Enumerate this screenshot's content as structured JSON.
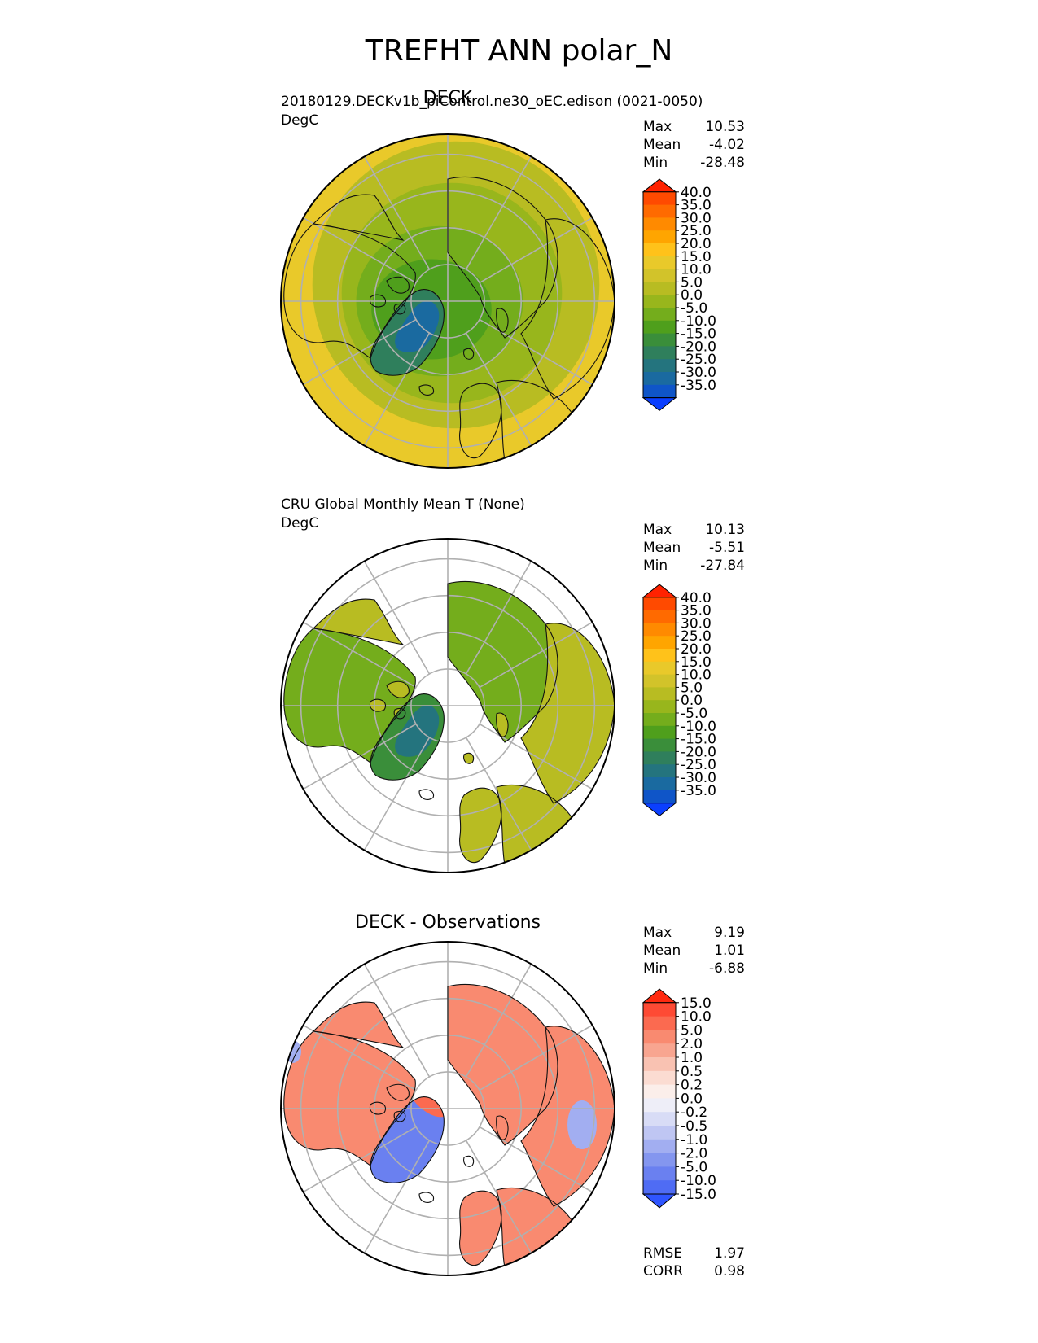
{
  "figure": {
    "title": "TREFHT ANN polar_N"
  },
  "colors": {
    "land_outline": "#111111",
    "grid": "#b0b0b0",
    "frame": "#000000"
  },
  "panels": [
    {
      "id": "test",
      "center_title": "DECK",
      "left_title": "20180129.DECKv1b_piControl.ne30_oEC.edison (0021-0050)",
      "units": "DegC",
      "field": "full",
      "stats": [
        {
          "label": "Max",
          "value": "10.53"
        },
        {
          "label": "Mean",
          "value": "-4.02"
        },
        {
          "label": "Min",
          "value": "-28.48"
        }
      ],
      "colorbar": {
        "ticks": [
          "40.0",
          "35.0",
          "30.0",
          "25.0",
          "20.0",
          "15.0",
          "10.0",
          "5.0",
          "0.0",
          "-5.0",
          "-10.0",
          "-15.0",
          "-20.0",
          "-25.0",
          "-30.0",
          "-35.0"
        ],
        "colors": [
          "#ff2200",
          "#ff4a00",
          "#ff6a00",
          "#ff8a00",
          "#ffa500",
          "#ffc21a",
          "#e9c92a",
          "#d2c32a",
          "#b8bc22",
          "#98b61c",
          "#74ad1c",
          "#4f9f1c",
          "#3a8e3a",
          "#2f7f5c",
          "#24747e",
          "#1a6aa0",
          "#0f55c8",
          "#0b3fff"
        ]
      },
      "extra_stats": []
    },
    {
      "id": "ref",
      "center_title": "",
      "left_title": "CRU Global Monthly Mean T (None)",
      "units": "DegC",
      "field": "land",
      "stats": [
        {
          "label": "Max",
          "value": "10.13"
        },
        {
          "label": "Mean",
          "value": "-5.51"
        },
        {
          "label": "Min",
          "value": "-27.84"
        }
      ],
      "colorbar": {
        "ticks": [
          "40.0",
          "35.0",
          "30.0",
          "25.0",
          "20.0",
          "15.0",
          "10.0",
          "5.0",
          "0.0",
          "-5.0",
          "-10.0",
          "-15.0",
          "-20.0",
          "-25.0",
          "-30.0",
          "-35.0"
        ],
        "colors": [
          "#ff2200",
          "#ff4a00",
          "#ff6a00",
          "#ff8a00",
          "#ffa500",
          "#ffc21a",
          "#e9c92a",
          "#d2c32a",
          "#b8bc22",
          "#98b61c",
          "#74ad1c",
          "#4f9f1c",
          "#3a8e3a",
          "#2f7f5c",
          "#24747e",
          "#1a6aa0",
          "#0f55c8",
          "#0b3fff"
        ]
      },
      "extra_stats": []
    },
    {
      "id": "diff",
      "center_title": "DECK - Observations",
      "left_title": "",
      "units": "",
      "field": "diff",
      "stats": [
        {
          "label": "Max",
          "value": "9.19"
        },
        {
          "label": "Mean",
          "value": "1.01"
        },
        {
          "label": "Min",
          "value": "-6.88"
        }
      ],
      "colorbar": {
        "ticks": [
          "15.0",
          "10.0",
          "5.0",
          "2.0",
          "1.0",
          "0.5",
          "0.2",
          "0.0",
          "-0.2",
          "-0.5",
          "-1.0",
          "-2.0",
          "-5.0",
          "-10.0",
          "-15.0"
        ],
        "colors": [
          "#ff2a10",
          "#fe4a34",
          "#fb6a50",
          "#f98a70",
          "#f8a590",
          "#f9c2b2",
          "#fbdcd2",
          "#fbeeea",
          "#eeeef8",
          "#d8dcf6",
          "#bfc6f3",
          "#a2aef1",
          "#8496ef",
          "#6a80f0",
          "#4f6cf4",
          "#2f55ff"
        ]
      },
      "extra_stats": [
        {
          "label": "RMSE",
          "value": "1.97"
        },
        {
          "label": "CORR",
          "value": "0.98"
        }
      ]
    }
  ]
}
